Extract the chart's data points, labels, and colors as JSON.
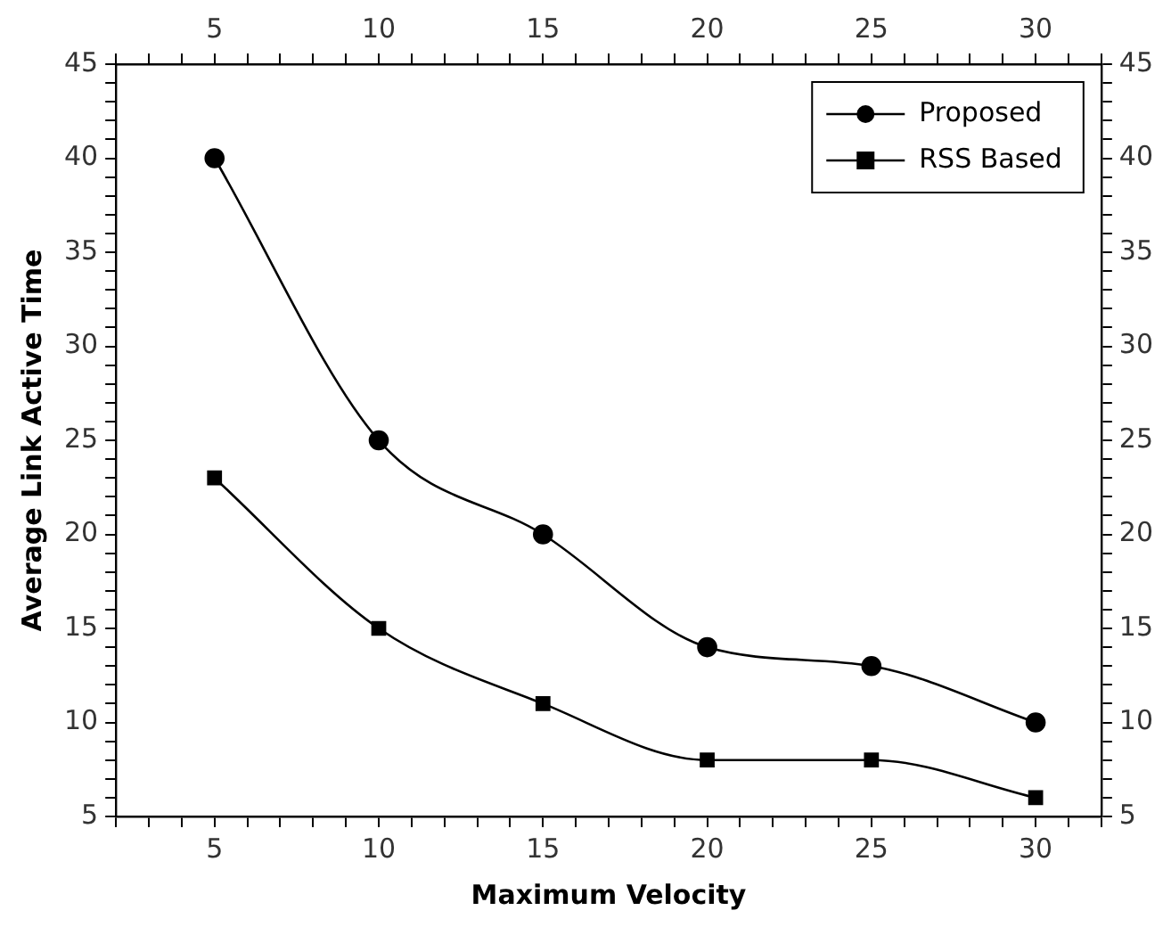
{
  "chart_data": {
    "type": "line",
    "xlabel": "Maximum Velocity",
    "ylabel": "Average Link Active Time",
    "xlim": [
      2,
      32
    ],
    "xticks": [
      {
        "value": 2,
        "label": null
      },
      {
        "value": 3,
        "label": null
      },
      {
        "value": 4,
        "label": null
      },
      5,
      {
        "value": 6,
        "label": null
      },
      {
        "value": 7,
        "label": null
      },
      {
        "value": 8,
        "label": null
      },
      {
        "value": 9,
        "label": null
      },
      10,
      {
        "value": 11,
        "label": null
      },
      {
        "value": 12,
        "label": null
      },
      {
        "value": 13,
        "label": null
      },
      {
        "value": 14,
        "label": null
      },
      15,
      {
        "value": 16,
        "label": null
      },
      {
        "value": 17,
        "label": null
      },
      {
        "value": 18,
        "label": null
      },
      {
        "value": 19,
        "label": null
      },
      20,
      {
        "value": 21,
        "label": null
      },
      {
        "value": 22,
        "label": null
      },
      {
        "value": 23,
        "label": null
      },
      {
        "value": 24,
        "label": null
      },
      25,
      {
        "value": 26,
        "label": null
      },
      {
        "value": 27,
        "label": null
      },
      {
        "value": 28,
        "label": null
      },
      {
        "value": 29,
        "label": null
      },
      30,
      {
        "value": 31,
        "label": null
      },
      {
        "value": 32,
        "label": null
      }
    ],
    "x2lim": [
      2,
      32
    ],
    "x2ticks": [
      {
        "value": 2,
        "label": null
      },
      {
        "value": 3,
        "label": null
      },
      {
        "value": 4,
        "label": null
      },
      5,
      {
        "value": 6,
        "label": null
      },
      {
        "value": 7,
        "label": null
      },
      {
        "value": 8,
        "label": null
      },
      {
        "value": 9,
        "label": null
      },
      10,
      {
        "value": 11,
        "label": null
      },
      {
        "value": 12,
        "label": null
      },
      {
        "value": 13,
        "label": null
      },
      {
        "value": 14,
        "label": null
      },
      15,
      {
        "value": 16,
        "label": null
      },
      {
        "value": 17,
        "label": null
      },
      {
        "value": 18,
        "label": null
      },
      {
        "value": 19,
        "label": null
      },
      20,
      {
        "value": 21,
        "label": null
      },
      {
        "value": 22,
        "label": null
      },
      {
        "value": 23,
        "label": null
      },
      {
        "value": 24,
        "label": null
      },
      25,
      {
        "value": 26,
        "label": null
      },
      {
        "value": 27,
        "label": null
      },
      {
        "value": 28,
        "label": null
      },
      {
        "value": 29,
        "label": null
      },
      30,
      {
        "value": 31,
        "label": null
      },
      {
        "value": 32,
        "label": null
      }
    ],
    "ylim": [
      5,
      45
    ],
    "yticks": [
      5,
      {
        "value": 6,
        "label": null
      },
      {
        "value": 7,
        "label": null
      },
      {
        "value": 8,
        "label": null
      },
      {
        "value": 9,
        "label": null
      },
      10,
      {
        "value": 11,
        "label": null
      },
      {
        "value": 12,
        "label": null
      },
      {
        "value": 13,
        "label": null
      },
      {
        "value": 14,
        "label": null
      },
      15,
      {
        "value": 16,
        "label": null
      },
      {
        "value": 17,
        "label": null
      },
      {
        "value": 18,
        "label": null
      },
      {
        "value": 19,
        "label": null
      },
      20,
      {
        "value": 21,
        "label": null
      },
      {
        "value": 22,
        "label": null
      },
      {
        "value": 23,
        "label": null
      },
      {
        "value": 24,
        "label": null
      },
      25,
      {
        "value": 26,
        "label": null
      },
      {
        "value": 27,
        "label": null
      },
      {
        "value": 28,
        "label": null
      },
      {
        "value": 29,
        "label": null
      },
      30,
      {
        "value": 31,
        "label": null
      },
      {
        "value": 32,
        "label": null
      },
      {
        "value": 33,
        "label": null
      },
      {
        "value": 34,
        "label": null
      },
      35,
      {
        "value": 36,
        "label": null
      },
      {
        "value": 37,
        "label": null
      },
      {
        "value": 38,
        "label": null
      },
      {
        "value": 39,
        "label": null
      },
      40,
      {
        "value": 41,
        "label": null
      },
      {
        "value": 42,
        "label": null
      },
      {
        "value": 43,
        "label": null
      },
      {
        "value": 44,
        "label": null
      },
      45
    ],
    "y2lim": [
      5,
      45
    ],
    "y2ticks": [
      5,
      {
        "value": 6,
        "label": null
      },
      {
        "value": 7,
        "label": null
      },
      {
        "value": 8,
        "label": null
      },
      {
        "value": 9,
        "label": null
      },
      10,
      {
        "value": 11,
        "label": null
      },
      {
        "value": 12,
        "label": null
      },
      {
        "value": 13,
        "label": null
      },
      {
        "value": 14,
        "label": null
      },
      15,
      {
        "value": 16,
        "label": null
      },
      {
        "value": 17,
        "label": null
      },
      {
        "value": 18,
        "label": null
      },
      {
        "value": 19,
        "label": null
      },
      20,
      {
        "value": 21,
        "label": null
      },
      {
        "value": 22,
        "label": null
      },
      {
        "value": 23,
        "label": null
      },
      {
        "value": 24,
        "label": null
      },
      25,
      {
        "value": 26,
        "label": null
      },
      {
        "value": 27,
        "label": null
      },
      {
        "value": 28,
        "label": null
      },
      {
        "value": 29,
        "label": null
      },
      30,
      {
        "value": 31,
        "label": null
      },
      {
        "value": 32,
        "label": null
      },
      {
        "value": 33,
        "label": null
      },
      {
        "value": 34,
        "label": null
      },
      35,
      {
        "value": 36,
        "label": null
      },
      {
        "value": 37,
        "label": null
      },
      {
        "value": 38,
        "label": null
      },
      {
        "value": 39,
        "label": null
      },
      40,
      {
        "value": 41,
        "label": null
      },
      {
        "value": 42,
        "label": null
      },
      {
        "value": 43,
        "label": null
      },
      {
        "value": 44,
        "label": null
      },
      45
    ],
    "x": [
      5,
      10,
      15,
      20,
      25,
      30
    ],
    "series": [
      {
        "name": "Proposed",
        "color": "#000000",
        "marker": "circle",
        "values": [
          40,
          25,
          20,
          14,
          13,
          10
        ]
      },
      {
        "name": "RSS Based",
        "color": "#000000",
        "marker": "square",
        "values": [
          23,
          15,
          11,
          8,
          8,
          6
        ]
      }
    ],
    "grid": false,
    "legend": "top right",
    "line_style": "solid"
  }
}
